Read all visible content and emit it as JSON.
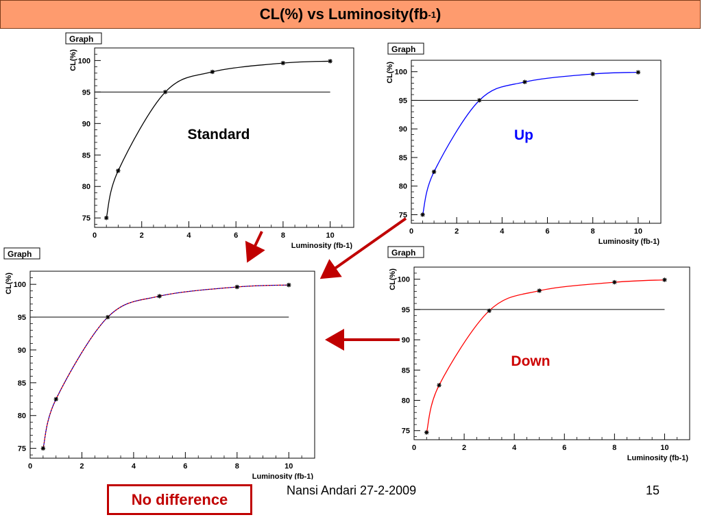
{
  "slide": {
    "title_main": "CL(%) vs Luminosity(fb",
    "title_sup": "-1",
    "title_close": ")",
    "footer_author": "Nansi Andari 27-2-2009",
    "footer_page": "15",
    "conclusion": "No difference"
  },
  "colors": {
    "title_bg": "#fe9b6e",
    "standard": "#000000",
    "up": "#0000ff",
    "down": "#ff0000",
    "arrow": "#c00000",
    "conclusion": "#c00000"
  },
  "chart_data": [
    {
      "type": "line",
      "graph_label": "Graph",
      "annotation": "Standard",
      "xlabel": "Luminosity (fb-1)",
      "ylabel": "CL(%)",
      "xlim": [
        0,
        11
      ],
      "ylim": [
        73.5,
        102
      ],
      "xticks": [
        0,
        2,
        4,
        6,
        8,
        10
      ],
      "yticks": [
        75,
        80,
        85,
        90,
        95,
        100
      ],
      "threshold": 95,
      "series": [
        {
          "color": "#000000",
          "x": [
            0.5,
            1,
            3,
            5,
            8,
            10
          ],
          "y": [
            75,
            82.5,
            95,
            98.2,
            99.6,
            99.9
          ]
        }
      ]
    },
    {
      "type": "line",
      "graph_label": "Graph",
      "annotation": "Up",
      "xlabel": "Luminosity (fb-1)",
      "ylabel": "CL(%)",
      "xlim": [
        0,
        11
      ],
      "ylim": [
        73.5,
        102
      ],
      "xticks": [
        0,
        2,
        4,
        6,
        8,
        10
      ],
      "yticks": [
        75,
        80,
        85,
        90,
        95,
        100
      ],
      "threshold": 95,
      "series": [
        {
          "color": "#0000ff",
          "x": [
            0.5,
            1,
            3,
            5,
            8,
            10
          ],
          "y": [
            75,
            82.5,
            95,
            98.2,
            99.6,
            99.9
          ]
        }
      ]
    },
    {
      "type": "line",
      "graph_label": "Graph",
      "annotation": "",
      "xlabel": "Luminosity (fb-1)",
      "ylabel": "CL(%)",
      "xlim": [
        0,
        11
      ],
      "ylim": [
        73.5,
        102
      ],
      "xticks": [
        0,
        2,
        4,
        6,
        8,
        10
      ],
      "yticks": [
        75,
        80,
        85,
        90,
        95,
        100
      ],
      "threshold": 95,
      "series": [
        {
          "color": "#ff0000",
          "x": [
            0.5,
            1,
            3,
            5,
            8,
            10
          ],
          "y": [
            75,
            82.5,
            95,
            98.2,
            99.6,
            99.9
          ]
        },
        {
          "color": "#0000ff",
          "x": [
            0.5,
            1,
            3,
            5,
            8,
            10
          ],
          "y": [
            75,
            82.5,
            95,
            98.2,
            99.6,
            99.9
          ]
        },
        {
          "color": "#000000",
          "x": [
            0.5,
            1,
            3,
            5,
            8,
            10
          ],
          "y": [
            75,
            82.5,
            95,
            98.2,
            99.6,
            99.9
          ]
        }
      ]
    },
    {
      "type": "line",
      "graph_label": "Graph",
      "annotation": "Down",
      "xlabel": "Luminosity (fb-1)",
      "ylabel": "CL(%)",
      "xlim": [
        0,
        11
      ],
      "ylim": [
        73.5,
        102
      ],
      "xticks": [
        0,
        2,
        4,
        6,
        8,
        10
      ],
      "yticks": [
        75,
        80,
        85,
        90,
        95,
        100
      ],
      "threshold": 95,
      "series": [
        {
          "color": "#ff0000",
          "x": [
            0.5,
            1,
            3,
            5,
            8,
            10
          ],
          "y": [
            74.7,
            82.5,
            94.8,
            98.1,
            99.5,
            99.9
          ]
        }
      ]
    }
  ]
}
